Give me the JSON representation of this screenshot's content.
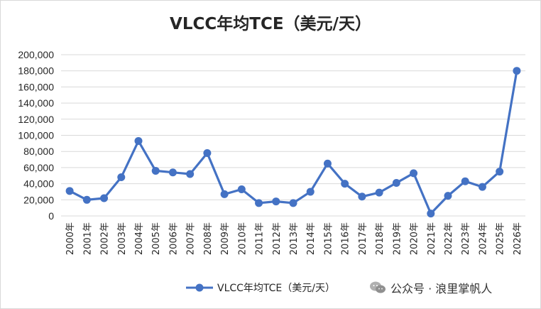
{
  "chart_data": {
    "type": "line",
    "title": "VLCC年均TCE（美元/天）",
    "categories": [
      "2000年",
      "2001年",
      "2002年",
      "2003年",
      "2004年",
      "2005年",
      "2006年",
      "2007年",
      "2008年",
      "2009年",
      "2010年",
      "2011年",
      "2012年",
      "2013年",
      "2014年",
      "2015年",
      "2016年",
      "2017年",
      "2018年",
      "2019年",
      "2020年",
      "2021年",
      "2022年",
      "2023年",
      "2024年",
      "2025年",
      "2026年"
    ],
    "series": [
      {
        "name": "VLCC年均TCE（美元/天）",
        "color": "#4472c4",
        "values": [
          31000,
          20000,
          22000,
          48000,
          93000,
          56000,
          54000,
          52000,
          78000,
          27000,
          33000,
          16000,
          18000,
          16000,
          30000,
          65000,
          40000,
          24000,
          29000,
          41000,
          53000,
          3000,
          25000,
          43000,
          36000,
          55000,
          180000
        ]
      }
    ],
    "y_ticks": [
      "0",
      "20,000",
      "40,000",
      "60,000",
      "80,000",
      "100,000",
      "120,000",
      "140,000",
      "160,000",
      "180,000",
      "200,000"
    ],
    "ylim": [
      0,
      200000
    ],
    "grid": true,
    "legend_position": "bottom"
  },
  "watermark": {
    "text": "公众号 · 浪里掌帆人",
    "icon": "wechat-icon"
  }
}
